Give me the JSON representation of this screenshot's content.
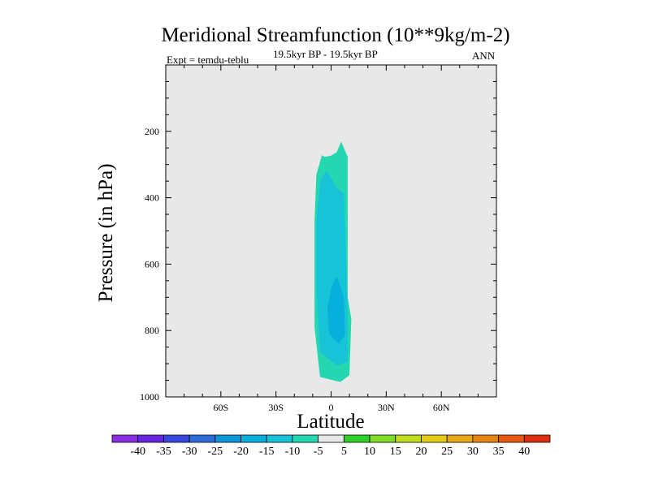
{
  "chart_data": {
    "type": "contour",
    "title": "Meridional Streamfunction (10**9kg/m-2)",
    "subtitle_left": "Expt = temdu-teblu",
    "subtitle_center": "19.5kyr BP - 19.5kyr BP",
    "subtitle_right": "ANN",
    "xlabel": "Latitude",
    "ylabel": "Pressure (in hPa)",
    "xlim": [
      -90,
      90
    ],
    "ylim": [
      0,
      1000
    ],
    "y_inverted": true,
    "x_ticks": [
      {
        "value": -60,
        "label": "60S"
      },
      {
        "value": -30,
        "label": "30S"
      },
      {
        "value": 0,
        "label": "0"
      },
      {
        "value": 30,
        "label": "30N"
      },
      {
        "value": 60,
        "label": "60N"
      }
    ],
    "y_ticks": [
      {
        "value": 200,
        "label": "200"
      },
      {
        "value": 400,
        "label": "400"
      },
      {
        "value": 600,
        "label": "600"
      },
      {
        "value": 800,
        "label": "800"
      },
      {
        "value": 1000,
        "label": "1000"
      }
    ],
    "background_color": "#e8e8e8",
    "contour_regions": [
      {
        "level": "-10 to -5",
        "color": "#25d7b0",
        "polygon": [
          [
            -3.5,
            277
          ],
          [
            0,
            273
          ],
          [
            3,
            263
          ],
          [
            5.5,
            231
          ],
          [
            9,
            277
          ],
          [
            9,
            700
          ],
          [
            11,
            765
          ],
          [
            10,
            935
          ],
          [
            5,
            955
          ],
          [
            -6,
            940
          ],
          [
            -9,
            790
          ],
          [
            -9,
            470
          ],
          [
            -8,
            330
          ],
          [
            -5,
            272
          ]
        ]
      },
      {
        "level": "-15 to -10",
        "color": "#18c3d8",
        "polygon": [
          [
            -2.5,
            318
          ],
          [
            -0.5,
            335
          ],
          [
            3,
            372
          ],
          [
            7,
            385
          ],
          [
            9,
            730
          ],
          [
            9,
            895
          ],
          [
            3,
            905
          ],
          [
            -6,
            865
          ],
          [
            -8,
            680
          ],
          [
            -8,
            470
          ],
          [
            -6,
            350
          ]
        ]
      },
      {
        "level": "-20 to -15",
        "color": "#08aedc",
        "polygon": [
          [
            3,
            635
          ],
          [
            7,
            700
          ],
          [
            7.5,
            815
          ],
          [
            4,
            840
          ],
          [
            -1,
            810
          ],
          [
            -2,
            730
          ],
          [
            0,
            675
          ]
        ]
      }
    ],
    "colorbar": {
      "colors": [
        "#8a2ee0",
        "#6525dd",
        "#3a45dc",
        "#2f6bd9",
        "#0e95da",
        "#08aedc",
        "#18c3d8",
        "#25d7b0",
        "#e8e8e8",
        "#2fd02a",
        "#80dd2a",
        "#c1dc1f",
        "#e6cc17",
        "#e7a716",
        "#e58414",
        "#e45a14",
        "#dc2e12"
      ],
      "labels": [
        "-40",
        "-35",
        "-30",
        "-25",
        "-20",
        "-15",
        "-10",
        "-5",
        "5",
        "10",
        "15",
        "20",
        "25",
        "30",
        "35",
        "40"
      ]
    }
  }
}
